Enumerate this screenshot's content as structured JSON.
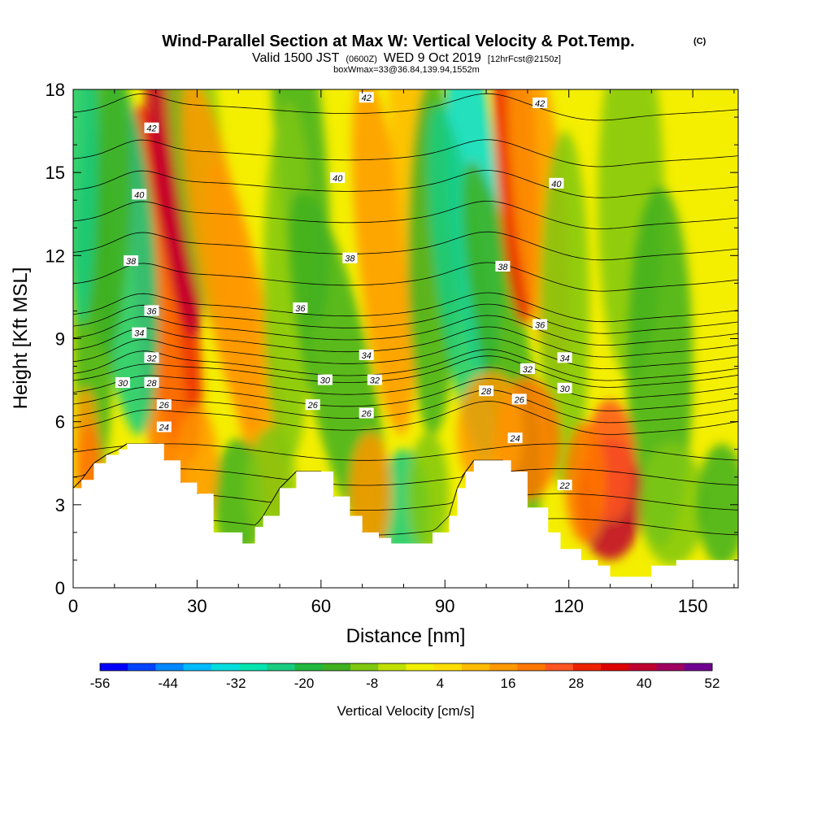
{
  "title": {
    "main": "Wind-Parallel Section at Max W: Vertical Velocity & Pot.Temp.",
    "corner": "(C)",
    "valid_a": "Valid 1500 JST",
    "valid_b": "(0600Z)",
    "valid_c": "WED 9 Oct 2019",
    "valid_d": "[12hrFcst@2150z]",
    "box": "boxWmax=33@36.84,139.94,1552m"
  },
  "chart_data": {
    "type": "heatmap",
    "xlabel": "Distance [nm]",
    "ylabel": "Height [Kft MSL]",
    "xlim": [
      0,
      161
    ],
    "ylim": [
      0,
      18
    ],
    "x_ticks": [
      0,
      30,
      60,
      90,
      120,
      150
    ],
    "y_ticks": [
      0,
      3,
      6,
      9,
      12,
      15,
      18
    ],
    "colorbar": {
      "label": "Vertical Velocity [cm/s]",
      "tick_values": [
        -56,
        -44,
        -32,
        -20,
        -8,
        4,
        16,
        28,
        40,
        52
      ],
      "min": -56,
      "max": 52,
      "colors": [
        "#0000ff",
        "#0044ff",
        "#0088ff",
        "#00bbff",
        "#00dddd",
        "#00e4b0",
        "#18cc80",
        "#20b840",
        "#40b020",
        "#80c810",
        "#c0e000",
        "#f0f000",
        "#ffdd00",
        "#ffbb00",
        "#ff9900",
        "#ff7700",
        "#ff5522",
        "#ee2200",
        "#dd0000",
        "#c00030",
        "#a00060",
        "#700090"
      ]
    },
    "terrain_kft": [
      [
        0,
        3.6
      ],
      [
        2,
        3.9
      ],
      [
        5,
        4.5
      ],
      [
        8,
        4.8
      ],
      [
        11,
        5.0
      ],
      [
        13,
        5.2
      ],
      [
        20,
        5.2
      ],
      [
        22,
        4.6
      ],
      [
        26,
        3.8
      ],
      [
        30,
        3.4
      ],
      [
        34,
        2.0
      ],
      [
        38,
        2.0
      ],
      [
        41,
        1.6
      ],
      [
        44,
        2.2
      ],
      [
        46,
        2.6
      ],
      [
        50,
        3.6
      ],
      [
        54,
        4.2
      ],
      [
        60,
        4.2
      ],
      [
        63,
        3.3
      ],
      [
        67,
        2.6
      ],
      [
        70,
        2.0
      ],
      [
        74,
        1.8
      ],
      [
        77,
        1.6
      ],
      [
        84,
        1.6
      ],
      [
        87,
        2.0
      ],
      [
        91,
        2.6
      ],
      [
        93,
        3.6
      ],
      [
        95,
        4.2
      ],
      [
        97,
        4.6
      ],
      [
        104,
        4.6
      ],
      [
        106,
        4.2
      ],
      [
        110,
        2.9
      ],
      [
        115,
        2.0
      ],
      [
        118,
        1.4
      ],
      [
        123,
        1.0
      ],
      [
        127,
        0.8
      ],
      [
        130,
        0.4
      ],
      [
        136,
        0.4
      ],
      [
        140,
        0.8
      ],
      [
        146,
        1.0
      ],
      [
        161,
        1.0
      ]
    ],
    "vertical_velocity_features": [
      {
        "x_center": 22,
        "z_bottom": 5,
        "z_top": 18,
        "w_max": 36,
        "description_code": "updraft"
      },
      {
        "x_center": 14,
        "z_bottom": 6,
        "z_top": 18,
        "w_max": -24,
        "description_code": "downdraft"
      },
      {
        "x_center": 97,
        "z_bottom": 7,
        "z_top": 18,
        "w_max": -34,
        "description_code": "downdraft"
      },
      {
        "x_center": 107,
        "z_bottom": 9,
        "z_top": 18,
        "w_max": 32,
        "description_code": "updraft"
      },
      {
        "x_center": 130,
        "z_bottom": 1,
        "z_top": 5.5,
        "w_max": 38,
        "description_code": "updraft"
      },
      {
        "x_center": 80,
        "z_bottom": 1.6,
        "z_top": 4,
        "w_max": -22,
        "description_code": "downdraft"
      }
    ],
    "theta_contours": [
      {
        "value": 22,
        "labels": [
          [
            119,
            3.7
          ]
        ]
      },
      {
        "value": 24,
        "labels": [
          [
            22,
            5.8
          ],
          [
            107,
            5.4
          ]
        ]
      },
      {
        "value": 26,
        "labels": [
          [
            22,
            6.6
          ],
          [
            58,
            6.6
          ],
          [
            71,
            6.3
          ],
          [
            108,
            6.8
          ]
        ]
      },
      {
        "value": 28,
        "labels": [
          [
            19,
            7.4
          ],
          [
            100,
            7.1
          ]
        ]
      },
      {
        "value": 30,
        "labels": [
          [
            12,
            7.4
          ],
          [
            61,
            7.5
          ],
          [
            119,
            7.2
          ]
        ]
      },
      {
        "value": 32,
        "labels": [
          [
            19,
            8.3
          ],
          [
            73,
            7.5
          ],
          [
            110,
            7.9
          ]
        ]
      },
      {
        "value": 34,
        "labels": [
          [
            16,
            9.2
          ],
          [
            71,
            8.4
          ],
          [
            119,
            8.3
          ]
        ]
      },
      {
        "value": 36,
        "labels": [
          [
            19,
            10.0
          ],
          [
            55,
            10.1
          ],
          [
            113,
            9.5
          ]
        ]
      },
      {
        "value": 38,
        "labels": [
          [
            14,
            11.8
          ],
          [
            67,
            11.9
          ],
          [
            104,
            11.6
          ]
        ]
      },
      {
        "value": 40,
        "labels": [
          [
            16,
            14.2
          ],
          [
            64,
            14.8
          ],
          [
            117,
            14.6
          ]
        ]
      },
      {
        "value": 42,
        "labels": [
          [
            19,
            16.6
          ],
          [
            71,
            17.7
          ],
          [
            113,
            17.5
          ]
        ]
      }
    ]
  }
}
